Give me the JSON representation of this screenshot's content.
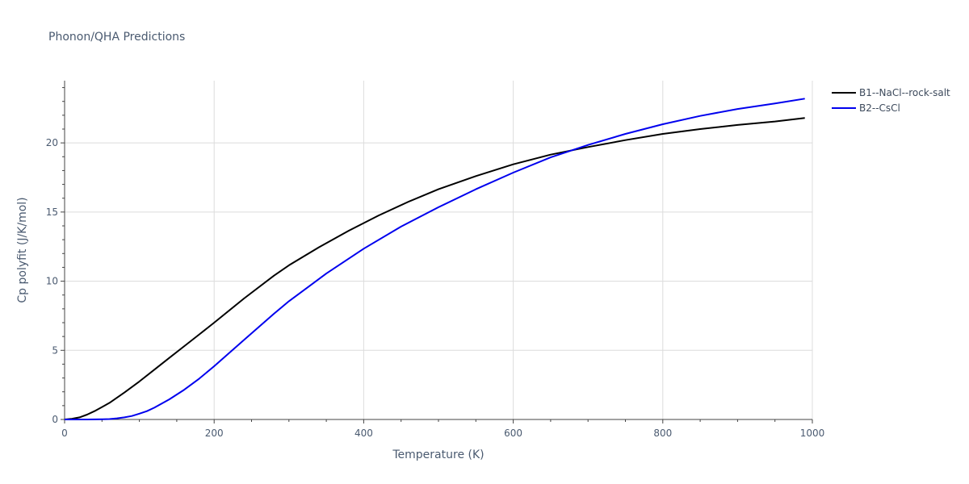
{
  "chart_data": {
    "type": "line",
    "title": "Phonon/QHA Predictions",
    "xlabel": "Temperature (K)",
    "ylabel": "Cp polyfit (J/K/mol)",
    "xlim": [
      0,
      1000
    ],
    "ylim": [
      0,
      24.5
    ],
    "xticks": [
      0,
      200,
      400,
      600,
      800,
      1000
    ],
    "yticks": [
      0,
      5,
      10,
      15,
      20
    ],
    "grid": true,
    "legend_position": "top-right",
    "series": [
      {
        "name": "B1--NaCl--rock-salt",
        "color": "#000000",
        "x": [
          0,
          10,
          20,
          30,
          40,
          50,
          60,
          80,
          100,
          120,
          140,
          160,
          180,
          200,
          240,
          280,
          300,
          340,
          380,
          420,
          460,
          500,
          550,
          600,
          650,
          700,
          750,
          800,
          850,
          900,
          950,
          990
        ],
        "y": [
          0,
          0.05,
          0.15,
          0.35,
          0.6,
          0.9,
          1.2,
          1.95,
          2.75,
          3.6,
          4.45,
          5.3,
          6.15,
          7.0,
          8.75,
          10.4,
          11.15,
          12.45,
          13.65,
          14.75,
          15.75,
          16.65,
          17.6,
          18.45,
          19.15,
          19.7,
          20.2,
          20.65,
          21.0,
          21.3,
          21.55,
          21.8
        ]
      },
      {
        "name": "B2--CsCl",
        "color": "#0000ee",
        "x": [
          0,
          30,
          50,
          60,
          70,
          80,
          90,
          100,
          110,
          120,
          140,
          160,
          180,
          200,
          240,
          280,
          300,
          350,
          400,
          450,
          500,
          550,
          600,
          650,
          700,
          750,
          800,
          850,
          900,
          950,
          990
        ],
        "y": [
          0,
          0,
          0.01,
          0.03,
          0.08,
          0.15,
          0.25,
          0.42,
          0.6,
          0.85,
          1.45,
          2.15,
          2.95,
          3.85,
          5.75,
          7.65,
          8.55,
          10.55,
          12.35,
          13.95,
          15.35,
          16.65,
          17.85,
          18.95,
          19.85,
          20.65,
          21.35,
          21.95,
          22.45,
          22.85,
          23.2
        ]
      }
    ]
  }
}
